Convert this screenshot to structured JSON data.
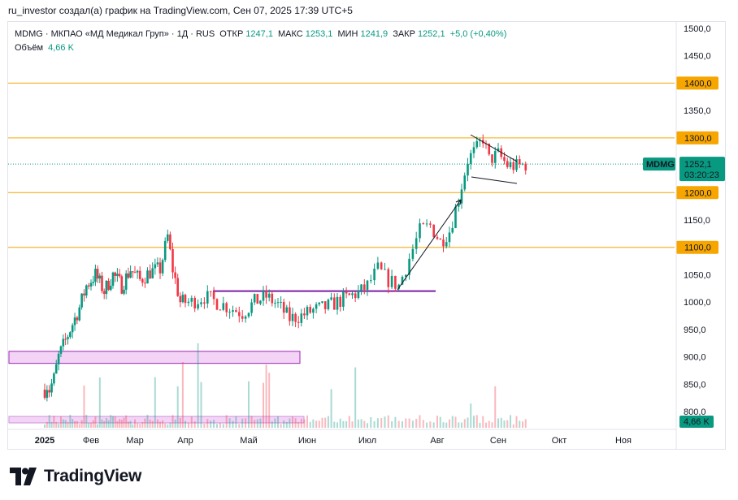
{
  "caption": "ru_investor создал(а) график на TradingView.com, Сен 07, 2025 17:39 UTC+5",
  "legend": {
    "symbol_line": "MDMG · МКПАО «МД Медикал Груп» · 1Д · RUS",
    "open_label": "ОТКР",
    "open_value": "1247,1",
    "high_label": "МАКС",
    "high_value": "1253,1",
    "low_label": "МИН",
    "low_value": "1241,9",
    "close_label": "ЗАКР",
    "close_value": "1252,1",
    "change": "+5,0 (+0,40%)",
    "volume_label": "Объём",
    "volume_value": "4,66 K"
  },
  "price_badge": {
    "ticker": "MDMG",
    "price": "1252,1",
    "countdown": "03:20:23",
    "color": "#089981"
  },
  "volume_badge": {
    "value": "4,66 K",
    "color": "#089981"
  },
  "brand": {
    "name": "TradingView"
  },
  "colors": {
    "up": "#089981",
    "down": "#f23645",
    "level": "#f7a600",
    "zone": "#ce93d8",
    "zone_fill": "#f3d4f7",
    "purple_line": "#7b1fa2"
  },
  "chart_data": {
    "type": "candlestick",
    "title": "",
    "y_axis": {
      "min": 800,
      "max": 1500,
      "ticks": [
        {
          "value": 800,
          "label": "800,0"
        },
        {
          "value": 850,
          "label": "850,0"
        },
        {
          "value": 900,
          "label": "900,0"
        },
        {
          "value": 950,
          "label": "950,0"
        },
        {
          "value": 1000,
          "label": "1000,0"
        },
        {
          "value": 1050,
          "label": "1050,0"
        },
        {
          "value": 1100,
          "label": "1100,0"
        },
        {
          "value": 1150,
          "label": "1150,0"
        },
        {
          "value": 1200,
          "label": "1200,0"
        },
        {
          "value": 1250,
          "label": "1250,0"
        },
        {
          "value": 1300,
          "label": "1300,0"
        },
        {
          "value": 1350,
          "label": "1350,0"
        },
        {
          "value": 1400,
          "label": "1400,0"
        },
        {
          "value": 1450,
          "label": "1450,0"
        },
        {
          "value": 1500,
          "label": "1500,0"
        }
      ]
    },
    "x_axis": {
      "labels": [
        "2025",
        "Фев",
        "Мар",
        "Апр",
        "Май",
        "Июн",
        "Июл",
        "Авг",
        "Сен",
        "Окт",
        "Ноя"
      ],
      "bold_labels": [
        "2025"
      ]
    },
    "horizontal_levels": [
      {
        "value": 1400,
        "label": "1400,0"
      },
      {
        "value": 1300,
        "label": "1300,0"
      },
      {
        "value": 1200,
        "label": "1200,0"
      },
      {
        "value": 1100,
        "label": "1100,0"
      }
    ],
    "support_line": {
      "value": 1020,
      "from_month": "Апр",
      "to_month": "Авг"
    },
    "zone": {
      "low": 888,
      "high": 910,
      "from_month": "2025",
      "to_month": "Июн"
    },
    "price_path": [
      {
        "m": 0.0,
        "p": 840
      },
      {
        "m": 0.05,
        "p": 848
      },
      {
        "m": 0.1,
        "p": 840
      },
      {
        "m": 0.2,
        "p": 860
      },
      {
        "m": 0.3,
        "p": 900
      },
      {
        "m": 0.45,
        "p": 930
      },
      {
        "m": 0.6,
        "p": 960
      },
      {
        "m": 0.75,
        "p": 990
      },
      {
        "m": 0.9,
        "p": 1030
      },
      {
        "m": 1.1,
        "p": 1050
      },
      {
        "m": 1.3,
        "p": 1020
      },
      {
        "m": 1.5,
        "p": 1050
      },
      {
        "m": 1.7,
        "p": 1030
      },
      {
        "m": 1.9,
        "p": 1060
      },
      {
        "m": 2.1,
        "p": 1040
      },
      {
        "m": 2.3,
        "p": 1055
      },
      {
        "m": 2.5,
        "p": 1060
      },
      {
        "m": 2.65,
        "p": 1120
      },
      {
        "m": 2.75,
        "p": 1060
      },
      {
        "m": 2.9,
        "p": 1000
      },
      {
        "m": 3.1,
        "p": 1000
      },
      {
        "m": 3.3,
        "p": 1010
      },
      {
        "m": 3.5,
        "p": 1000
      },
      {
        "m": 3.7,
        "p": 990
      },
      {
        "m": 3.9,
        "p": 980
      },
      {
        "m": 4.1,
        "p": 1000
      },
      {
        "m": 4.3,
        "p": 1010
      },
      {
        "m": 4.5,
        "p": 995
      },
      {
        "m": 4.7,
        "p": 970
      },
      {
        "m": 4.9,
        "p": 975
      },
      {
        "m": 5.1,
        "p": 985
      },
      {
        "m": 5.3,
        "p": 990
      },
      {
        "m": 5.5,
        "p": 1000
      },
      {
        "m": 5.7,
        "p": 1010
      },
      {
        "m": 5.9,
        "p": 1020
      },
      {
        "m": 6.0,
        "p": 1030
      },
      {
        "m": 6.15,
        "p": 1060
      },
      {
        "m": 6.3,
        "p": 1040
      },
      {
        "m": 6.45,
        "p": 1030
      },
      {
        "m": 6.6,
        "p": 1080
      },
      {
        "m": 6.75,
        "p": 1130
      },
      {
        "m": 6.9,
        "p": 1140
      },
      {
        "m": 7.05,
        "p": 1110
      },
      {
        "m": 7.2,
        "p": 1130
      },
      {
        "m": 7.35,
        "p": 1190
      },
      {
        "m": 7.5,
        "p": 1260
      },
      {
        "m": 7.65,
        "p": 1280
      },
      {
        "m": 7.75,
        "p": 1300
      },
      {
        "m": 7.85,
        "p": 1260
      },
      {
        "m": 8.0,
        "p": 1270
      },
      {
        "m": 8.15,
        "p": 1250
      },
      {
        "m": 8.3,
        "p": 1248
      },
      {
        "m": 8.45,
        "p": 1252
      }
    ]
  }
}
